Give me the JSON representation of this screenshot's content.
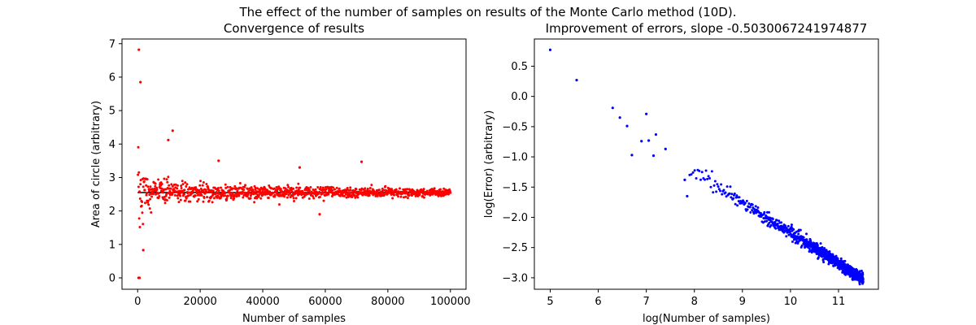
{
  "figure": {
    "suptitle": "The effect of the number of samples on results of the Monte Carlo method (10D)."
  },
  "chart_data": [
    {
      "type": "scatter",
      "title": "Convergence of results",
      "xlabel": "Number of samples",
      "ylabel": "Area of circle (arbitrary)",
      "xlim": [
        -5000,
        105000
      ],
      "ylim": [
        -0.34,
        7.14
      ],
      "xticks": [
        0,
        20000,
        40000,
        60000,
        80000,
        100000
      ],
      "xtick_labels": [
        "0",
        "20000",
        "40000",
        "60000",
        "80000",
        "100000"
      ],
      "yticks": [
        0,
        1,
        2,
        3,
        4,
        5,
        6,
        7
      ],
      "ytick_labels": [
        "0",
        "1",
        "2",
        "3",
        "4",
        "5",
        "6",
        "7"
      ],
      "grid": false,
      "reference_line": {
        "y": 2.55,
        "x": [
          0,
          100000
        ],
        "color": "#000000"
      },
      "series": [
        {
          "color": "#ff0000",
          "description": "1000 Monte Carlo estimates for sample sizes 100 to 100000 (step 100), scattered around 2.55 with spread shrinking as 1/sqrt(N)",
          "count": 1000,
          "x_start": 100,
          "x_step": 100,
          "center": 2.55,
          "points_highlighted": [
            {
              "x": 400,
              "y": 6.82
            },
            {
              "x": 900,
              "y": 5.85
            },
            {
              "x": 300,
              "y": 0.0
            },
            {
              "x": 600,
              "y": 0.0
            },
            {
              "x": 1800,
              "y": 0.83
            },
            {
              "x": 11200,
              "y": 4.4
            },
            {
              "x": 9800,
              "y": 4.12
            },
            {
              "x": 25900,
              "y": 3.5
            },
            {
              "x": 51800,
              "y": 3.3
            },
            {
              "x": 71600,
              "y": 3.47
            },
            {
              "x": 58200,
              "y": 1.9
            }
          ]
        }
      ]
    },
    {
      "type": "scatter",
      "title": "Improvement of errors, slope -0.5030067241974877",
      "xlabel": "log(Number of samples)",
      "ylabel": "log(Error) (arbitrary)",
      "xlim": [
        4.67,
        11.83
      ],
      "ylim": [
        -3.19,
        0.95
      ],
      "xticks": [
        5,
        6,
        7,
        8,
        9,
        10,
        11
      ],
      "xtick_labels": [
        "5",
        "6",
        "7",
        "8",
        "9",
        "10",
        "11"
      ],
      "yticks": [
        -3.0,
        -2.5,
        -2.0,
        -1.5,
        -1.0,
        -0.5,
        0.0,
        0.5
      ],
      "ytick_labels": [
        "−3.0",
        "−2.5",
        "−2.0",
        "−1.5",
        "−1.0",
        "−0.5",
        "0.0",
        "0.5"
      ],
      "grid": false,
      "series": [
        {
          "color": "#0000ff",
          "description": "log(error) vs log(N) for the same 1000 sample sizes; approximately linear with slope -0.503",
          "slope": -0.5030067241974877,
          "points_highlighted": [
            {
              "x": 5.0,
              "y": 0.77
            },
            {
              "x": 5.55,
              "y": 0.27
            },
            {
              "x": 6.3,
              "y": -0.19
            },
            {
              "x": 6.45,
              "y": -0.35
            },
            {
              "x": 6.6,
              "y": -0.49
            },
            {
              "x": 6.7,
              "y": -0.97
            },
            {
              "x": 6.9,
              "y": -0.74
            },
            {
              "x": 7.0,
              "y": -0.29
            },
            {
              "x": 7.05,
              "y": -0.73
            },
            {
              "x": 7.15,
              "y": -0.98
            },
            {
              "x": 7.2,
              "y": -0.63
            },
            {
              "x": 7.4,
              "y": -0.87
            },
            {
              "x": 7.8,
              "y": -1.38
            },
            {
              "x": 7.85,
              "y": -1.65
            },
            {
              "x": 11.5,
              "y": -3.05
            }
          ]
        }
      ]
    }
  ]
}
